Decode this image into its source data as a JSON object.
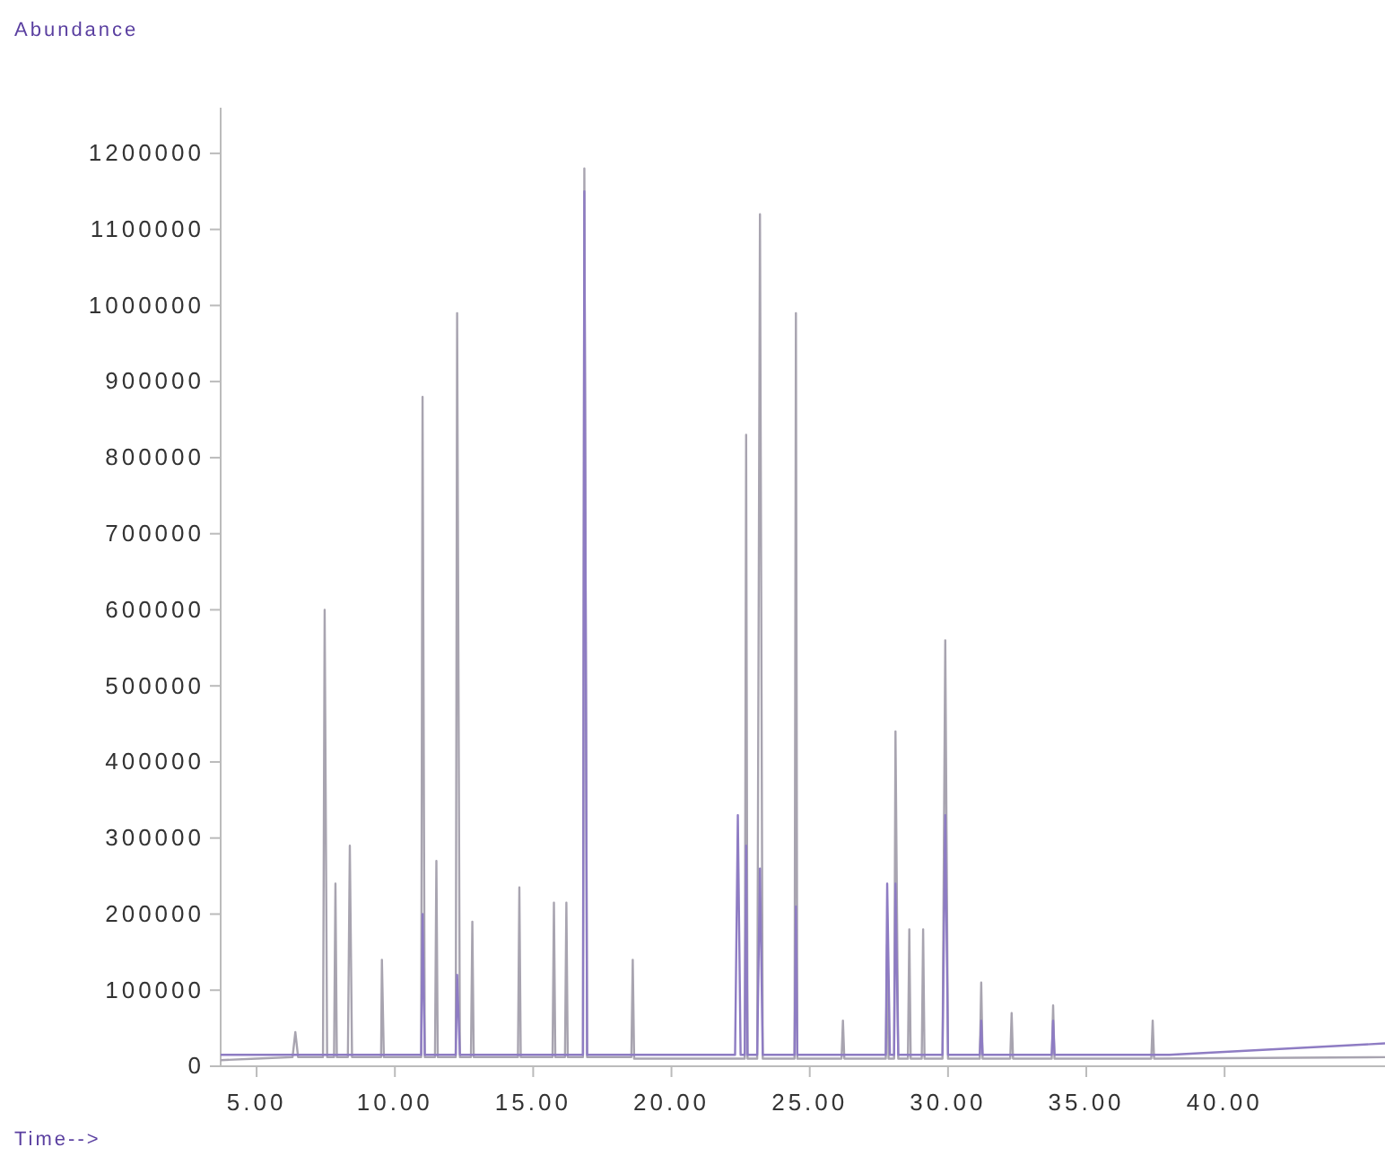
{
  "chart_data": {
    "type": "line",
    "ylabel": "Abundance",
    "xlabel": "Time-->",
    "xlim": [
      3.7,
      45.8
    ],
    "ylim": [
      0,
      1260000
    ],
    "xticks": [
      {
        "value": 5,
        "label": "5.00"
      },
      {
        "value": 10,
        "label": "10.00"
      },
      {
        "value": 15,
        "label": "15.00"
      },
      {
        "value": 20,
        "label": "20.00"
      },
      {
        "value": 25,
        "label": "25.00"
      },
      {
        "value": 30,
        "label": "30.00"
      },
      {
        "value": 35,
        "label": "35.00"
      },
      {
        "value": 40,
        "label": "40.00"
      }
    ],
    "yticks": [
      0,
      100000,
      200000,
      300000,
      400000,
      500000,
      600000,
      700000,
      800000,
      900000,
      1000000,
      1100000,
      1200000
    ],
    "grid": false,
    "series": [
      {
        "color": "#a8a4b0",
        "x": [
          3.7,
          5.0,
          6.3,
          6.4,
          6.5,
          7.4,
          7.46,
          7.55,
          7.8,
          7.85,
          7.9,
          8.3,
          8.37,
          8.45,
          9.5,
          9.53,
          9.6,
          10.95,
          11.0,
          11.08,
          11.45,
          11.5,
          11.55,
          12.2,
          12.25,
          12.35,
          12.75,
          12.8,
          12.85,
          14.45,
          14.5,
          14.55,
          15.7,
          15.75,
          15.8,
          16.15,
          16.2,
          16.25,
          16.8,
          16.85,
          16.95,
          18.55,
          18.6,
          18.65,
          22.65,
          22.7,
          22.75,
          23.1,
          23.2,
          23.3,
          24.45,
          24.5,
          24.55,
          26.15,
          26.2,
          26.25,
          27.75,
          27.8,
          27.85,
          28.05,
          28.1,
          28.2,
          28.55,
          28.6,
          28.65,
          29.05,
          29.1,
          29.15,
          29.8,
          29.9,
          30.0,
          31.15,
          31.2,
          31.25,
          32.25,
          32.3,
          32.35,
          33.75,
          33.8,
          33.85,
          37.35,
          37.4,
          37.45,
          45.8
        ],
        "values": [
          8000,
          10000,
          12000,
          45000,
          12000,
          12000,
          600000,
          12000,
          12000,
          240000,
          12000,
          12000,
          290000,
          12000,
          12000,
          140000,
          12000,
          12000,
          880000,
          12000,
          12000,
          270000,
          12000,
          12000,
          990000,
          12000,
          12000,
          190000,
          12000,
          12000,
          235000,
          12000,
          12000,
          215000,
          12000,
          12000,
          215000,
          12000,
          12000,
          1180000,
          12000,
          12000,
          140000,
          10000,
          10000,
          830000,
          10000,
          10000,
          1120000,
          10000,
          10000,
          990000,
          10000,
          10000,
          60000,
          10000,
          10000,
          160000,
          10000,
          10000,
          440000,
          10000,
          10000,
          180000,
          10000,
          10000,
          180000,
          10000,
          10000,
          560000,
          10000,
          10000,
          110000,
          10000,
          10000,
          70000,
          10000,
          10000,
          80000,
          10000,
          10000,
          60000,
          10000,
          12000
        ]
      },
      {
        "color": "#8e7cc3",
        "x": [
          3.7,
          10.95,
          11.0,
          11.08,
          12.2,
          12.25,
          12.35,
          16.8,
          16.85,
          16.95,
          22.3,
          22.4,
          22.5,
          22.65,
          22.7,
          22.75,
          23.1,
          23.2,
          23.3,
          24.45,
          24.5,
          24.55,
          27.75,
          27.8,
          27.9,
          28.05,
          28.1,
          28.2,
          29.8,
          29.9,
          30.0,
          31.15,
          31.2,
          31.25,
          33.75,
          33.8,
          33.85,
          38.0,
          45.8
        ],
        "values": [
          15000,
          15000,
          200000,
          15000,
          15000,
          120000,
          15000,
          15000,
          1150000,
          15000,
          15000,
          330000,
          15000,
          15000,
          290000,
          15000,
          15000,
          260000,
          15000,
          15000,
          210000,
          15000,
          15000,
          240000,
          15000,
          15000,
          240000,
          15000,
          15000,
          330000,
          15000,
          15000,
          60000,
          15000,
          15000,
          60000,
          15000,
          15000,
          30000
        ]
      }
    ]
  }
}
